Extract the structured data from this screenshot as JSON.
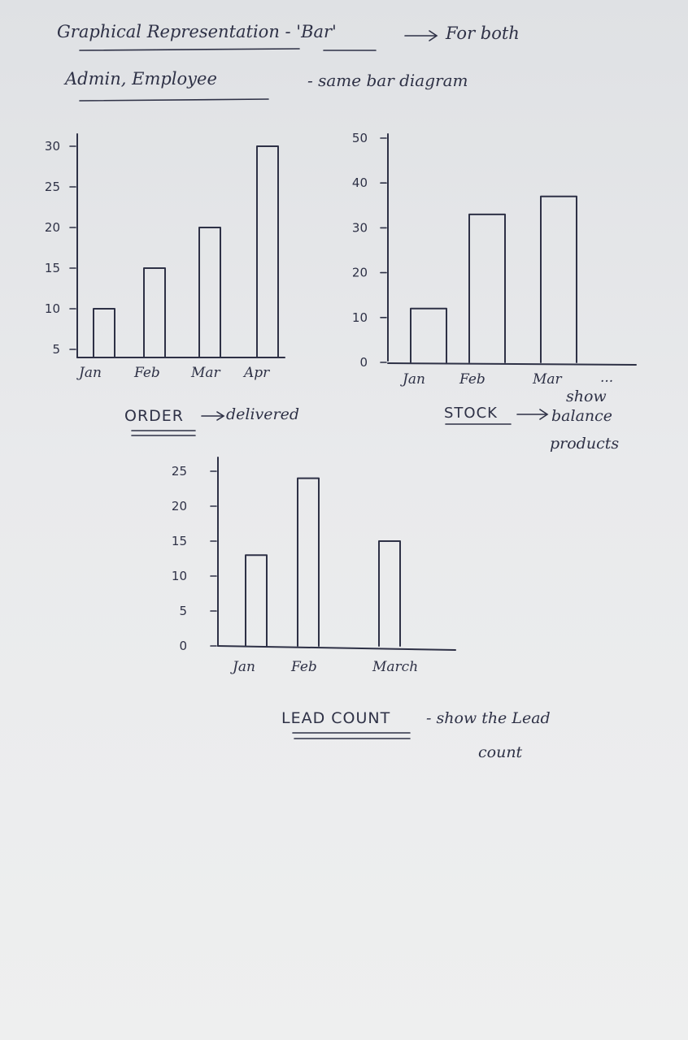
{
  "heading": {
    "line1": "Graphical Representation - 'Bar'",
    "arrow_text": "For both",
    "line2": "Admin, Employee",
    "line2_note": "- same bar diagram"
  },
  "captions": {
    "order": {
      "label": "ORDER",
      "note": "delivered"
    },
    "stock": {
      "label": "STOCK",
      "note_line1": "show",
      "note_line2": "balance",
      "note_line3": "products"
    },
    "lead": {
      "label": "LEAD COUNT",
      "note_line1": "- show the Lead",
      "note_line2": "count"
    }
  },
  "chart_data": [
    {
      "id": "order",
      "type": "bar",
      "categories": [
        "Jan",
        "Feb",
        "Mar",
        "Apr"
      ],
      "values": [
        10,
        15,
        20,
        30
      ],
      "yticks": [
        5,
        10,
        15,
        20,
        25,
        30
      ],
      "ylabels": [
        "5",
        "10",
        "15",
        "20",
        "25",
        "30"
      ],
      "ylim": [
        4,
        30
      ],
      "grid": false
    },
    {
      "id": "stock",
      "type": "bar",
      "categories": [
        "Jan",
        "Feb",
        "Mar"
      ],
      "values": [
        12,
        33,
        37
      ],
      "trailing_label": "...",
      "yticks": [
        0,
        10,
        20,
        30,
        40,
        50
      ],
      "ylabels": [
        "0",
        "10",
        "20",
        "30",
        "40",
        "50"
      ],
      "ylim": [
        0,
        50
      ],
      "grid": false
    },
    {
      "id": "lead",
      "type": "bar",
      "categories": [
        "Jan",
        "Feb",
        "March"
      ],
      "values": [
        13,
        24,
        15
      ],
      "yticks": [
        0,
        5,
        10,
        15,
        20,
        25
      ],
      "ylabels": [
        "0",
        "5",
        "10",
        "15",
        "20",
        "25"
      ],
      "ylim": [
        0,
        25
      ],
      "grid": false
    }
  ]
}
